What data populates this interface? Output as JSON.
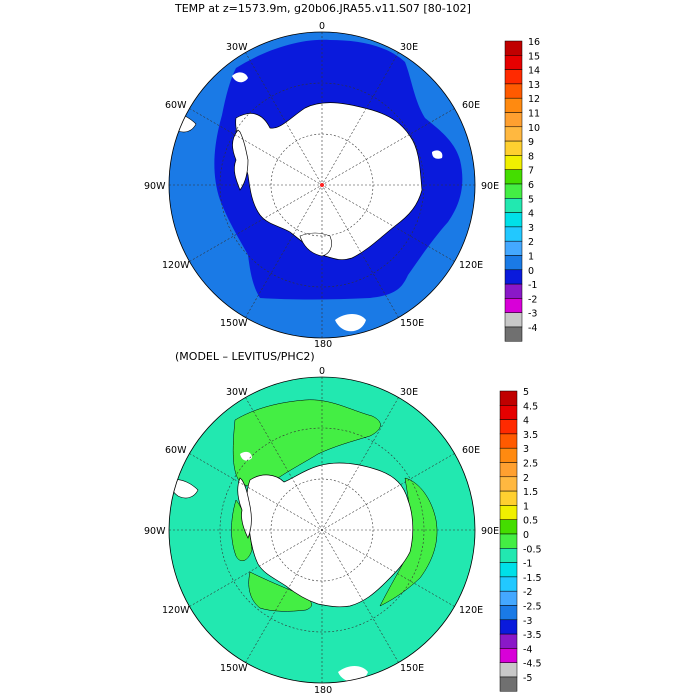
{
  "title_top": "TEMP at z=1573.9m, g20b06.JRA55.v11.S07 [80-102]",
  "title_bottom": "(MODEL – LEVITUS/PHC2)",
  "longitude_labels": {
    "lon_0": "0",
    "lon_30e": "30E",
    "lon_60e": "60E",
    "lon_90e": "90E",
    "lon_120e": "120E",
    "lon_150e": "150E",
    "lon_180": "180",
    "lon_150w": "150W",
    "lon_120w": "120W",
    "lon_90w": "90W",
    "lon_60w": "60W",
    "lon_30w": "30W"
  },
  "colorbar_top": {
    "labels": [
      "16",
      "15",
      "14",
      "13",
      "12",
      "11",
      "10",
      "9",
      "8",
      "7",
      "6",
      "5",
      "4",
      "3",
      "2",
      "1",
      "0",
      "-1",
      "-2",
      "-3",
      "-4"
    ],
    "colors": [
      "#c00000",
      "#e60000",
      "#ff2a00",
      "#ff5a00",
      "#ff8a10",
      "#ffa030",
      "#ffb840",
      "#ffd030",
      "#f0f000",
      "#44dd00",
      "#44ee44",
      "#22e8b0",
      "#00e0e8",
      "#22c8ff",
      "#44a8ff",
      "#1a7ae6",
      "#0a1adc",
      "#8a18c8",
      "#d800d8",
      "#c8c8c8",
      "#707070"
    ]
  },
  "colorbar_bottom": {
    "labels": [
      "5",
      "4.5",
      "4",
      "3.5",
      "3",
      "2.5",
      "2",
      "1.5",
      "1",
      "0.5",
      "0",
      "-0.5",
      "-1",
      "-1.5",
      "-2",
      "-2.5",
      "-3",
      "-3.5",
      "-4",
      "-4.5",
      "-5"
    ],
    "colors": [
      "#c00000",
      "#e60000",
      "#ff2a00",
      "#ff5a00",
      "#ff8a10",
      "#ffa030",
      "#ffb840",
      "#ffd030",
      "#f0f000",
      "#44dd00",
      "#44ee44",
      "#22e8b0",
      "#00e0e8",
      "#22c8ff",
      "#44a8ff",
      "#1a7ae6",
      "#0a1adc",
      "#8a18c8",
      "#d800d8",
      "#c8c8c8",
      "#707070"
    ]
  }
}
